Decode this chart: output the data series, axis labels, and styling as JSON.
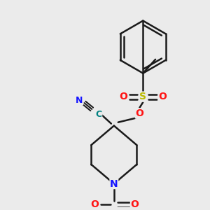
{
  "bg_color": "#ebebeb",
  "bond_color": "#1a1a1a",
  "bond_width": 1.8,
  "atoms": {
    "N": {
      "color": "#1414ff"
    },
    "O": {
      "color": "#ff1414"
    },
    "S": {
      "color": "#bbbb00"
    },
    "C": {
      "color": "#008080"
    }
  },
  "figsize": [
    3.0,
    3.0
  ],
  "dpi": 100
}
